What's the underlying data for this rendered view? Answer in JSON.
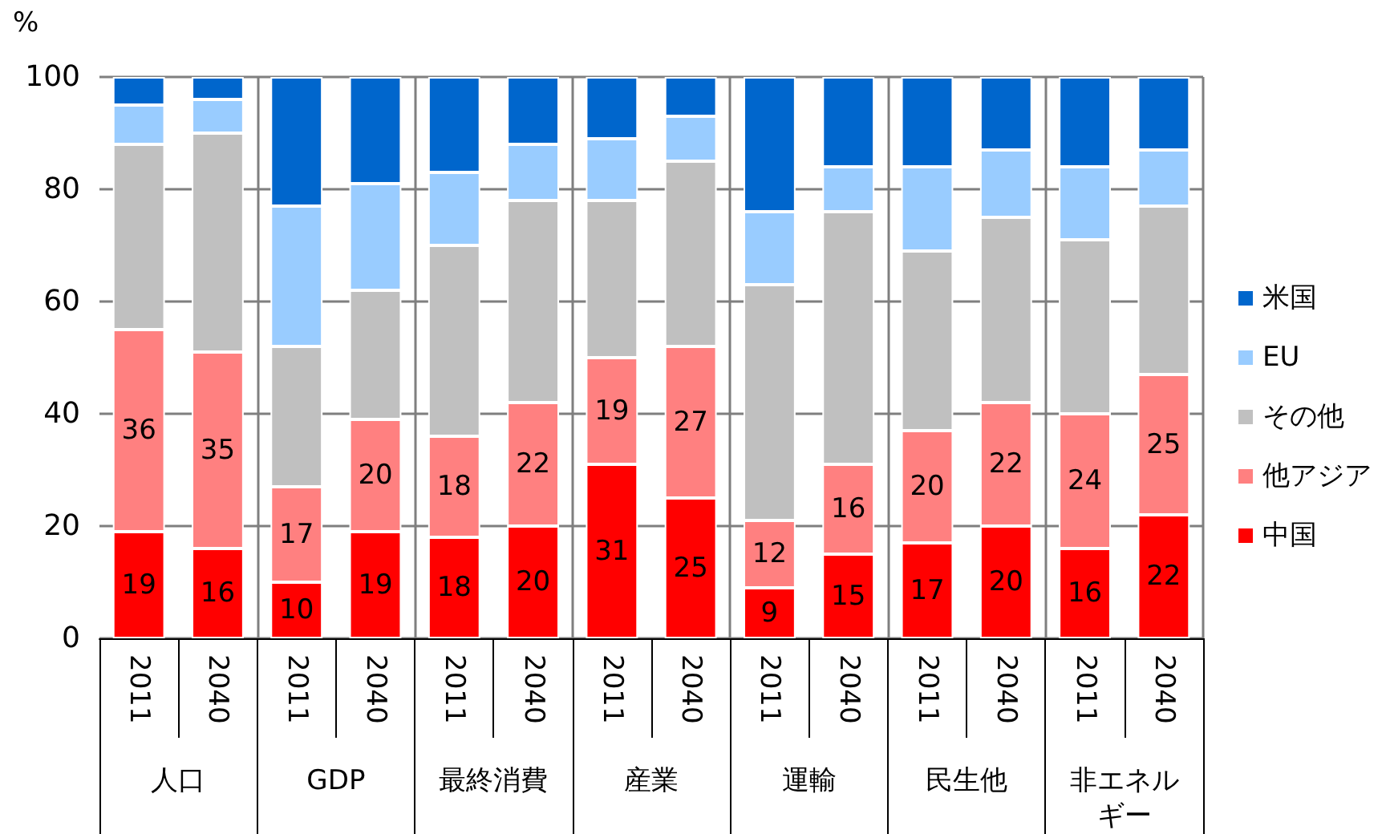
{
  "chart_data": {
    "type": "bar",
    "stacked": true,
    "ylabel": "%",
    "categories": [
      "2011",
      "2040",
      "2011",
      "2040",
      "2011",
      "2040",
      "2011",
      "2040",
      "2011",
      "2040",
      "2011",
      "2040",
      "2011",
      "2040"
    ],
    "annotations": [
      "人口",
      "GDP",
      "最終消費",
      "産業",
      "運輸",
      "民生他",
      "非エネルギー"
    ],
    "series": [
      {
        "name": "中国",
        "color": "#ff0000",
        "values": [
          19,
          16,
          10,
          19,
          18,
          20,
          31,
          25,
          9,
          15,
          17,
          20,
          16,
          22
        ],
        "value_labels": [
          "19",
          "16",
          "10",
          "19",
          "18",
          "20",
          "31",
          "25",
          "9",
          "15",
          "17",
          "20",
          "16",
          "22"
        ]
      },
      {
        "name": "他アジア",
        "color": "#ff8080",
        "values": [
          36,
          35,
          17,
          20,
          18,
          22,
          19,
          27,
          12,
          16,
          20,
          22,
          24,
          25
        ],
        "value_labels": [
          "36",
          "35",
          "17",
          "20",
          "18",
          "22",
          "19",
          "27",
          "12",
          "16",
          "20",
          "22",
          "24",
          "25"
        ]
      },
      {
        "name": "その他",
        "color": "#c0c0c0",
        "values": [
          33,
          39,
          25,
          23,
          34,
          36,
          28,
          33,
          42,
          45,
          32,
          33,
          31,
          30
        ]
      },
      {
        "name": "EU",
        "color": "#99ccff",
        "values": [
          7,
          6,
          25,
          19,
          13,
          10,
          11,
          8,
          13,
          8,
          15,
          12,
          13,
          10
        ]
      },
      {
        "name": "米国",
        "color": "#0066cc",
        "values": [
          5,
          4,
          23,
          19,
          17,
          12,
          11,
          7,
          24,
          16,
          16,
          13,
          16,
          13
        ]
      }
    ],
    "ylim": [
      0,
      100
    ],
    "yticks": [
      0,
      20,
      40,
      60,
      80,
      100
    ],
    "grid": true,
    "legend": "right"
  }
}
